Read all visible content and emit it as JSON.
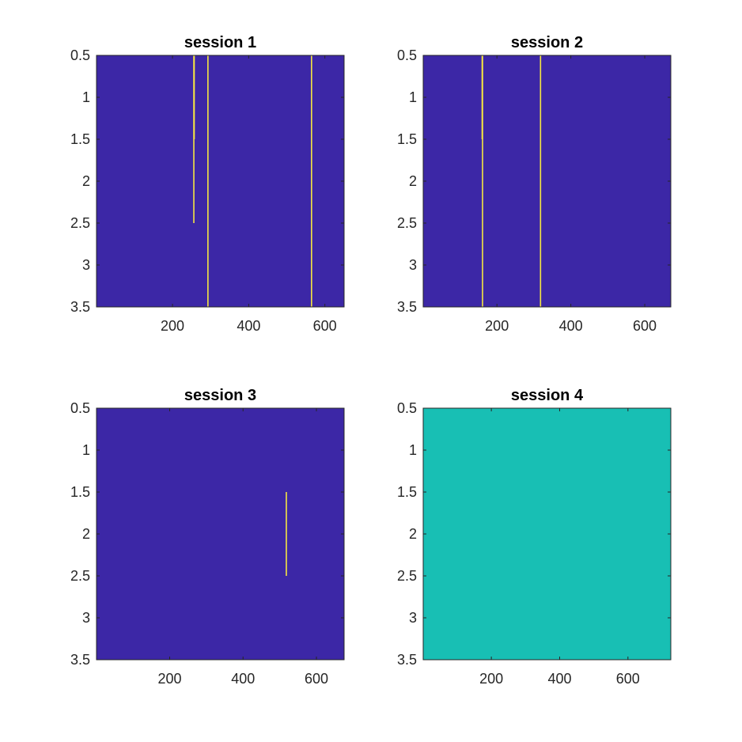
{
  "colors": {
    "background": "#3c27a6",
    "stripe": "#f5e641",
    "uniform": "#18bfb4",
    "axis": "#262626"
  },
  "chart_data": [
    {
      "type": "heatmap",
      "title": "session 1",
      "xlabel": "",
      "ylabel": "",
      "xlim": [
        0.5,
        650.5
      ],
      "ylim": [
        0.5,
        3.5
      ],
      "x_ticks": [
        200,
        400,
        600
      ],
      "y_ticks": [
        0.5,
        1,
        1.5,
        2,
        2.5,
        3,
        3.5
      ],
      "background_value": 0,
      "fill_color": "#3c27a6",
      "stripes": [
        {
          "x": 256,
          "y_from": 0.5,
          "y_to": 1.5,
          "value": 1
        },
        {
          "x": 257,
          "y_from": 0.5,
          "y_to": 1.5,
          "value": 1
        },
        {
          "x": 256,
          "y_from": 1.5,
          "y_to": 2.5,
          "value": 1
        },
        {
          "x": 293,
          "y_from": 0.5,
          "y_to": 3.5,
          "value": 1
        },
        {
          "x": 565,
          "y_from": 0.5,
          "y_to": 3.5,
          "value": 1
        }
      ]
    },
    {
      "type": "heatmap",
      "title": "session 2",
      "xlabel": "",
      "ylabel": "",
      "xlim": [
        0.5,
        670.5
      ],
      "ylim": [
        0.5,
        3.5
      ],
      "x_ticks": [
        200,
        400,
        600
      ],
      "y_ticks": [
        0.5,
        1,
        1.5,
        2,
        2.5,
        3,
        3.5
      ],
      "background_value": 0,
      "fill_color": "#3c27a6",
      "stripes": [
        {
          "x": 160,
          "y_from": 0.5,
          "y_to": 1.5,
          "value": 1
        },
        {
          "x": 161,
          "y_from": 0.5,
          "y_to": 3.5,
          "value": 1
        },
        {
          "x": 318,
          "y_from": 0.5,
          "y_to": 3.5,
          "value": 1
        }
      ]
    },
    {
      "type": "heatmap",
      "title": "session 3",
      "xlabel": "",
      "ylabel": "",
      "xlim": [
        0.5,
        675.5
      ],
      "ylim": [
        0.5,
        3.5
      ],
      "x_ticks": [
        200,
        400,
        600
      ],
      "y_ticks": [
        0.5,
        1,
        1.5,
        2,
        2.5,
        3,
        3.5
      ],
      "background_value": 0,
      "fill_color": "#3c27a6",
      "stripes": [
        {
          "x": 518,
          "y_from": 1.5,
          "y_to": 2.5,
          "value": 1
        }
      ]
    },
    {
      "type": "heatmap",
      "title": "session 4",
      "xlabel": "",
      "ylabel": "",
      "xlim": [
        0.5,
        725.5
      ],
      "ylim": [
        0.5,
        3.5
      ],
      "x_ticks": [
        200,
        400,
        600
      ],
      "y_ticks": [
        0.5,
        1,
        1.5,
        2,
        2.5,
        3,
        3.5
      ],
      "background_value": 0.5,
      "fill_color": "#18bfb4",
      "stripes": []
    }
  ]
}
